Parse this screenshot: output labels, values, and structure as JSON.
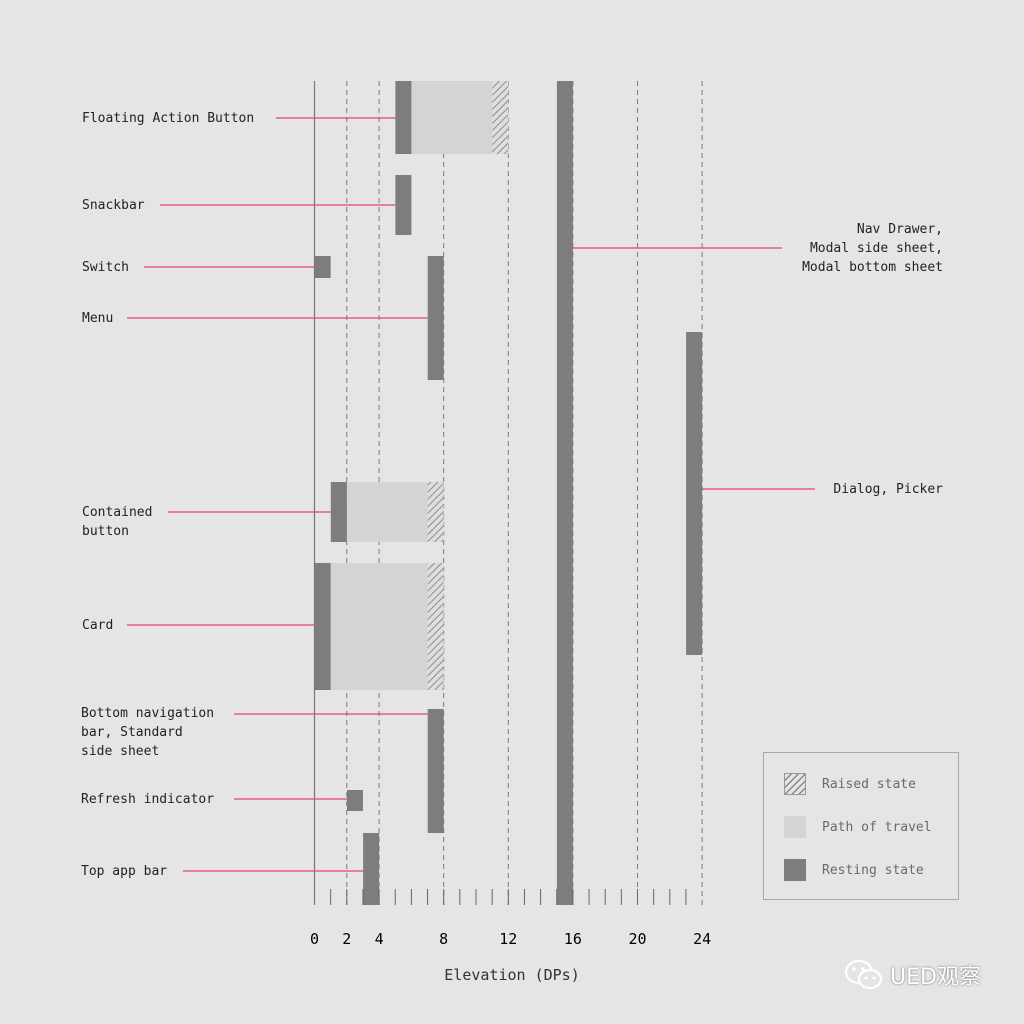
{
  "chart_data": {
    "type": "bar",
    "orientation": "horizontal-ranges",
    "xlabel": "Elevation (DPs)",
    "xlim": [
      0,
      24
    ],
    "x_ticks": [
      0,
      2,
      4,
      8,
      12,
      16,
      20,
      24
    ],
    "grid": "dashed vertical lines at 2, 4, 8, 12, 16, 20, 24",
    "legend_position": "bottom-right",
    "colors": {
      "resting": "#7d7d7d",
      "path": "#d4d4d4",
      "raised": "#8a8a8a",
      "leader": "#e8417a",
      "background": "#e5e5e5"
    },
    "components": [
      {
        "label": "Floating Action Button",
        "resting": 6,
        "raised": 12
      },
      {
        "label": "Snackbar",
        "resting": 6
      },
      {
        "label": "Switch",
        "resting": 1
      },
      {
        "label": "Menu",
        "resting": 8
      },
      {
        "label": "Contained\nbutton",
        "resting": 2,
        "raised": 8
      },
      {
        "label": "Card",
        "resting": 1,
        "raised": 8
      },
      {
        "label": "Bottom navigation\nbar, Standard\nside sheet",
        "resting": 8
      },
      {
        "label": "Refresh indicator",
        "resting": 3
      },
      {
        "label": "Top app bar",
        "resting": 4
      },
      {
        "label": "Nav Drawer,\nModal side sheet,\nModal bottom sheet",
        "resting": 16
      },
      {
        "label": "Dialog, Picker",
        "resting": 24
      }
    ]
  },
  "legend": {
    "raised": "Raised state",
    "path": "Path of travel",
    "resting": "Resting state"
  },
  "watermark": {
    "text": "UED观察",
    "icon": "wechat-icon"
  }
}
